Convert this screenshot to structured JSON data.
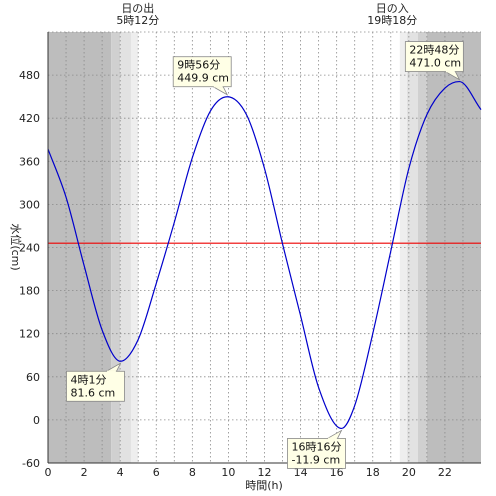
{
  "chart_data": {
    "type": "line",
    "xlabel": "時間(h)",
    "ylabel": "水位(cm)",
    "xlim": [
      0,
      24
    ],
    "ylim": [
      -60,
      540
    ],
    "x_ticks": [
      0,
      2,
      4,
      6,
      8,
      10,
      12,
      14,
      16,
      18,
      20,
      22
    ],
    "y_ticks": [
      -60,
      0,
      60,
      120,
      180,
      240,
      300,
      360,
      420,
      480
    ],
    "grid": true,
    "mean_level": 246,
    "line_color": "#0000cc",
    "mean_color": "#ee0000",
    "shade": {
      "night": "#bdbdbd",
      "twilight_dark": "#d0d0d0",
      "twilight_light": "#e2e2e2",
      "twilight_lightest": "#eeeeee",
      "bands": [
        {
          "from": 0,
          "to": 3.5,
          "tone": "night"
        },
        {
          "from": 3.5,
          "to": 4.0,
          "tone": "twilight_dark"
        },
        {
          "from": 4.0,
          "to": 4.6,
          "tone": "twilight_light"
        },
        {
          "from": 4.6,
          "to": 5.0,
          "tone": "twilight_lightest"
        },
        {
          "from": 19.5,
          "to": 19.9,
          "tone": "twilight_lightest"
        },
        {
          "from": 19.9,
          "to": 20.5,
          "tone": "twilight_light"
        },
        {
          "from": 20.5,
          "to": 21.0,
          "tone": "twilight_dark"
        },
        {
          "from": 21.0,
          "to": 24,
          "tone": "night"
        }
      ]
    },
    "sun_events": [
      {
        "x": 5.2,
        "label": "日の出",
        "time": "5時12分"
      },
      {
        "x": 19.3,
        "label": "日の入",
        "time": "19時18分"
      }
    ],
    "extremes": [
      {
        "type": "low",
        "x": 4.017,
        "y": 81.6,
        "time_label": "4時1分",
        "value_label": "81.6 cm",
        "placement": "below-left"
      },
      {
        "type": "high",
        "x": 9.933,
        "y": 449.9,
        "time_label": "9時56分",
        "value_label": "449.9 cm",
        "placement": "above-left"
      },
      {
        "type": "low",
        "x": 16.267,
        "y": -11.9,
        "time_label": "16時16分",
        "value_label": "-11.9 cm",
        "placement": "below-left"
      },
      {
        "type": "high",
        "x": 22.8,
        "y": 471.0,
        "time_label": "22時48分",
        "value_label": "471.0 cm",
        "placement": "above-left"
      }
    ],
    "series": [
      {
        "x": [
          0,
          1,
          2,
          3,
          4.017,
          5,
          6,
          7,
          8,
          9,
          9.933,
          11,
          12,
          13,
          14,
          15,
          16.267,
          17,
          18,
          19,
          20,
          21,
          22,
          22.8,
          24
        ],
        "y": [
          377,
          310,
          215,
          125,
          81.6,
          112,
          190,
          275,
          365,
          430,
          449.9,
          425,
          350,
          245,
          145,
          45,
          -11.9,
          20,
          120,
          235,
          350,
          425,
          462,
          471.0,
          432
        ]
      }
    ],
    "annotation_colors": {
      "fill": "#ffffe6",
      "stroke": "#888888"
    }
  }
}
